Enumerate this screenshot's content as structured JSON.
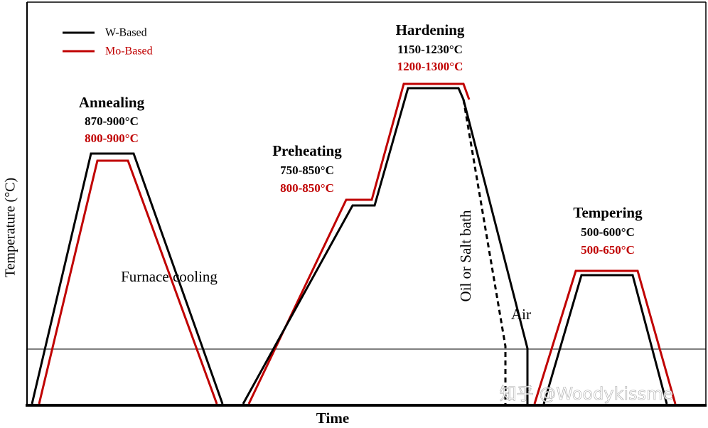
{
  "legend": {
    "entries": [
      {
        "label": "W-Based",
        "color": "#000000"
      },
      {
        "label": "Mo-Based",
        "color": "#c00000"
      }
    ]
  },
  "axes": {
    "x_label": "Time",
    "y_label": "Temperature (°C)"
  },
  "stages": [
    {
      "name": "Annealing",
      "w_range": "870-900°C",
      "mo_range": "800-900°C"
    },
    {
      "name": "Preheating",
      "w_range": "750-850°C",
      "mo_range": "800-850°C"
    },
    {
      "name": "Hardening",
      "w_range": "1150-1230°C",
      "mo_range": "1200-1300°C"
    },
    {
      "name": "Tempering",
      "w_range": "500-600°C",
      "mo_range": "500-650°C"
    }
  ],
  "annotations": {
    "furnace_cooling": "Furnace cooling",
    "quench_oil": "Oil or Salt bath",
    "quench_air": "Air"
  },
  "watermark": "知乎 @Woodykissme"
}
